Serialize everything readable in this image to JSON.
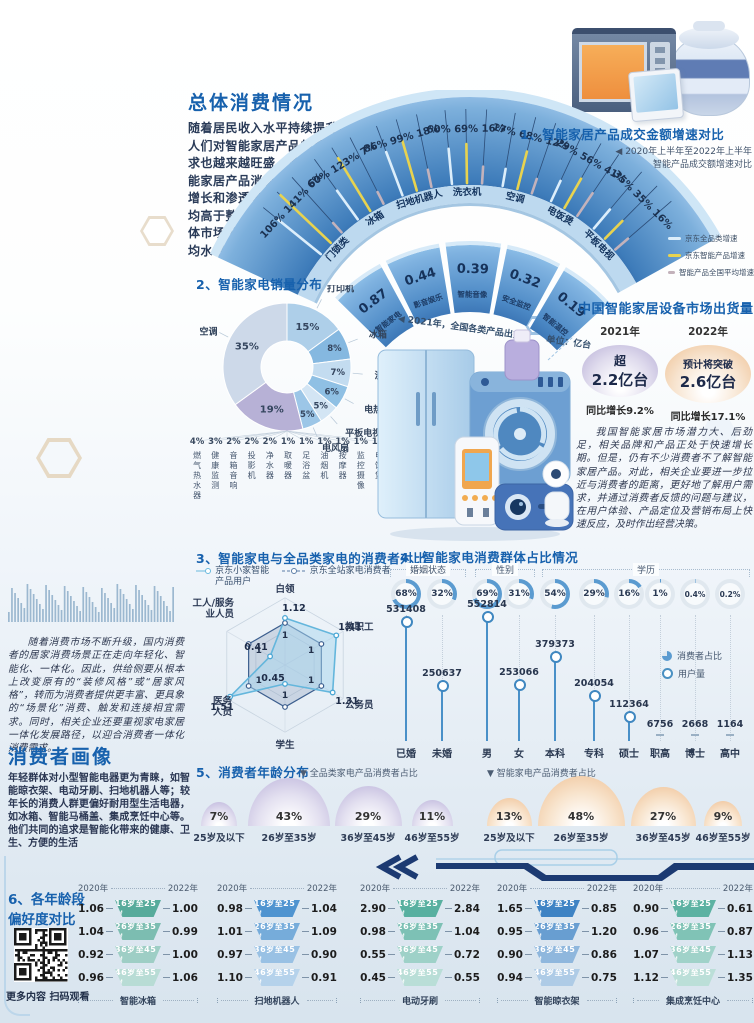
{
  "texts": {
    "overall_title": "总体消费情况",
    "intro_lines": [
      "随着居民收入水平持续提升，",
      "人们对智能家居产品的需",
      "求也越来越旺盛，智",
      "能家居产品消费",
      "增长和渗透率",
      "均高于整",
      "体市场平",
      "均水平"
    ],
    "market_note": "随着消费市场不断升级，国内消费者的居家消费场景正在走向年轻化、智能化、一体化。因此，供给侧要从根本上改变原有的“装修风格”或“居家风格”，转而为消费者提供更丰富、更具象的“场景化”消费、触发和连接相宜需求。同时，相关企业还要重视家电家居一体化发展路径，以迎合消费者一体化消费需求。",
    "profile_title": "消费者画像",
    "profile_text": "年轻群体对小型智能电器更为青睐，如智能晾衣架、电动牙刷、扫地机器人等；较年长的消费人群更偏好耐用型生活电器，如冰箱、智能马桶盖、集成烹饪中心等。他们共同的追求是智能化带来的健康、卫生、方便的生活",
    "qr_caption": "更多内容 扫码观看"
  },
  "stats": {
    "title": "中国智能家居设备市场出货量",
    "note": "我国智能家居市场潜力大、后劲足，相关品牌和产品正处于快速增长期。但是，仍有不少消费者不了解智能家居产品。对此，相关企业要进一步拉近与消费者的距离，更好地了解用户需求，并通过消费者反馈的问题与建议，在用户体验、产品定位及营销布局上快速反应，及时作出经营决策。",
    "years": [
      {
        "year": "2021年",
        "prefix": "超",
        "value": "2.2亿台",
        "growth": "同比增长9.2%",
        "color": "#b7aed6"
      },
      {
        "year": "2022年",
        "prefix": "预计将突破",
        "value": "2.6亿台",
        "growth": "同比增长17.1%",
        "color": "#eec092"
      }
    ]
  },
  "chart_data": [
    {
      "id": "growth-arc",
      "type": "bar",
      "title": "1、智能家居产品成交金额增速对比",
      "subtitle_lines": [
        "◀ 2020年上半年至2022年上半年",
        "智能产品成交额增速对比"
      ],
      "unit": "%",
      "categories": [
        "门锁类",
        "冰箱",
        "扫地机器人",
        "洗衣机",
        "空调",
        "电饭煲",
        "平板电视"
      ],
      "series": [
        {
          "name": "京东全品类增速",
          "color": "#dceefb",
          "values": [
            106,
            60,
            86,
            60,
            17,
            29,
            35
          ]
        },
        {
          "name": "京东智能产品增速",
          "color": "#e8d34f",
          "values": [
            141,
            123,
            99,
            69,
            68,
            56,
            35
          ]
        },
        {
          "name": "智能产品全国平均增速",
          "color": "#c3b2bb",
          "values": [
            6,
            7,
            18,
            16,
            12,
            41,
            16
          ]
        }
      ]
    },
    {
      "id": "shipments-arc",
      "type": "bar",
      "caption": "◀ 2021年，全国各类产品出货量",
      "unit_label": "单位：亿台",
      "categories": [
        "智能家电",
        "影音娱乐",
        "智能音像",
        "安全监控",
        "智能温控"
      ],
      "values": [
        0.87,
        0.44,
        0.39,
        0.32,
        0.19
      ]
    },
    {
      "id": "sales-donut",
      "type": "pie",
      "title": "2、智能家电销量分布",
      "unit": "%",
      "slices": [
        {
          "label": "打印机",
          "value": 15,
          "color": "#aecfe9"
        },
        {
          "label": "冰箱",
          "value": 8,
          "color": "#85b8e0"
        },
        {
          "label": "洗衣机",
          "value": 7,
          "color": "#c3dcf0"
        },
        {
          "label": "电热水器",
          "value": 6,
          "color": "#8fc0e4"
        },
        {
          "label": "平板电视",
          "value": 5,
          "color": "#d3e5f4"
        },
        {
          "label": "电风扇",
          "value": 5,
          "color": "#9cc6e7"
        },
        {
          "label": "",
          "value": 19,
          "color": "#b7b1d6"
        },
        {
          "label": "空调",
          "value": 35,
          "color": "#cdd9e9"
        }
      ],
      "sub_slices": [
        {
          "label": "燃气热水器",
          "value": 4
        },
        {
          "label": "健康监测",
          "value": 3
        },
        {
          "label": "音箱音响",
          "value": 2
        },
        {
          "label": "投影机",
          "value": 2
        },
        {
          "label": "净水器",
          "value": 2
        },
        {
          "label": "取暖器",
          "value": 1
        },
        {
          "label": "足浴盆",
          "value": 1
        },
        {
          "label": "油烟机",
          "value": 1
        },
        {
          "label": "按摩器",
          "value": 1
        },
        {
          "label": "监控摄像",
          "value": 1
        },
        {
          "label": "电饭煲",
          "value": 1
        }
      ]
    },
    {
      "id": "consumer-radar",
      "type": "radar",
      "title": "3、智能家电与全品类家电的消费者对比",
      "axes": [
        "白领",
        "教职工",
        "公务员",
        "学生",
        "医务人员",
        "工人/服务业人员"
      ],
      "series": [
        {
          "name": "京东小家智能产品用户",
          "values": [
            1.12,
            1.41,
            1.31,
            0.45,
            1.51,
            0.41
          ]
        },
        {
          "name": "京东全站家电消费者",
          "values": [
            1,
            1,
            1,
            1,
            1,
            1
          ]
        }
      ]
    },
    {
      "id": "demographics",
      "type": "bar",
      "title": "4、智能家电消费群体占比情况",
      "legend": [
        "消费者占比",
        "用户量"
      ],
      "groups": [
        {
          "name": "婚姻状态",
          "items": [
            {
              "label": "已婚",
              "percent": "68%",
              "count": 531408
            },
            {
              "label": "未婚",
              "percent": "32%",
              "count": 250637
            }
          ]
        },
        {
          "name": "性别",
          "items": [
            {
              "label": "男",
              "percent": "69%",
              "count": 552814
            },
            {
              "label": "女",
              "percent": "31%",
              "count": 253066
            }
          ]
        },
        {
          "name": "学历",
          "items": [
            {
              "label": "本科",
              "percent": "54%",
              "count": 379373
            },
            {
              "label": "专科",
              "percent": "29%",
              "count": 204054
            },
            {
              "label": "硕士",
              "percent": "16%",
              "count": 112364
            },
            {
              "label": "职高",
              "percent": "1%",
              "count": 6756
            },
            {
              "label": "博士",
              "percent": "0.4%",
              "count": 2668
            },
            {
              "label": "高中",
              "percent": "0.2%",
              "count": 1164
            }
          ]
        }
      ]
    },
    {
      "id": "age-distribution",
      "type": "bubble",
      "title": "5、消费者年龄分布",
      "groups": [
        {
          "name": "▼ 全品类家电产品消费者占比",
          "palette": "purple",
          "items": [
            {
              "label": "25岁及以下",
              "percent": 7
            },
            {
              "label": "26岁至35岁",
              "percent": 43
            },
            {
              "label": "36岁至45岁",
              "percent": 29
            },
            {
              "label": "46岁至55岁",
              "percent": 11
            }
          ]
        },
        {
          "name": "▼ 智能家电产品消费者占比",
          "palette": "orange",
          "items": [
            {
              "label": "25岁及以下",
              "percent": 13
            },
            {
              "label": "26岁至35岁",
              "percent": 48
            },
            {
              "label": "36岁至45岁",
              "percent": 27
            },
            {
              "label": "46岁至55岁",
              "percent": 9
            }
          ]
        }
      ]
    },
    {
      "id": "age-preference",
      "type": "table",
      "title_lines": [
        "6、各年龄段",
        "偏好度对比"
      ],
      "col_headers": [
        "2020年",
        "2022年"
      ],
      "age_rows": [
        "16岁至25岁",
        "26岁至35岁",
        "36岁至45岁",
        "46岁至55岁"
      ],
      "products": [
        {
          "name": "智能冰箱",
          "color": "#57ab9b",
          "values_2020": [
            "1.06",
            "1.04",
            "0.92",
            "0.96"
          ],
          "values_2022": [
            "1.00",
            "0.99",
            "1.00",
            "1.06"
          ]
        },
        {
          "name": "扫地机器人",
          "color": "#4f94d0",
          "values_2020": [
            "0.98",
            "1.01",
            "0.97",
            "1.10"
          ],
          "values_2022": [
            "1.04",
            "1.09",
            "0.90",
            "0.91"
          ]
        },
        {
          "name": "电动牙刷",
          "color": "#58b0a0",
          "values_2020": [
            "2.90",
            "0.98",
            "0.55",
            "0.45"
          ],
          "values_2022": [
            "2.84",
            "1.04",
            "0.72",
            "0.55"
          ]
        },
        {
          "name": "智能晾衣架",
          "color": "#3e83c4",
          "values_2020": [
            "1.65",
            "0.95",
            "0.90",
            "0.94"
          ],
          "values_2022": [
            "0.85",
            "1.20",
            "0.86",
            "0.75"
          ]
        },
        {
          "name": "集成烹饪中心",
          "color": "#5cb2a2",
          "values_2020": [
            "0.90",
            "0.96",
            "1.07",
            "1.12"
          ],
          "values_2022": [
            "0.61",
            "0.87",
            "1.13",
            "1.35"
          ]
        }
      ]
    }
  ]
}
